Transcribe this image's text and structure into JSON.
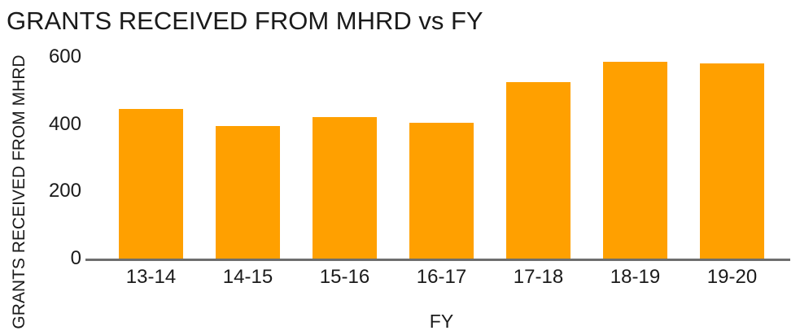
{
  "chart_data": {
    "type": "bar",
    "title": "GRANTS RECEIVED FROM MHRD vs FY",
    "xlabel": "FY",
    "ylabel": "GRANTS RECEIVED FROM MHRD",
    "categories": [
      "13-14",
      "14-15",
      "15-16",
      "16-17",
      "17-18",
      "18-19",
      "19-20"
    ],
    "values": [
      445,
      395,
      420,
      405,
      525,
      585,
      580
    ],
    "ylim": [
      0,
      600
    ],
    "yticks": [
      0,
      200,
      400,
      600
    ],
    "grid": false,
    "legend": false,
    "colors": {
      "bar": "#FFA000",
      "axis_line": "#6E6E6E",
      "text": "#1A1A1A"
    }
  }
}
